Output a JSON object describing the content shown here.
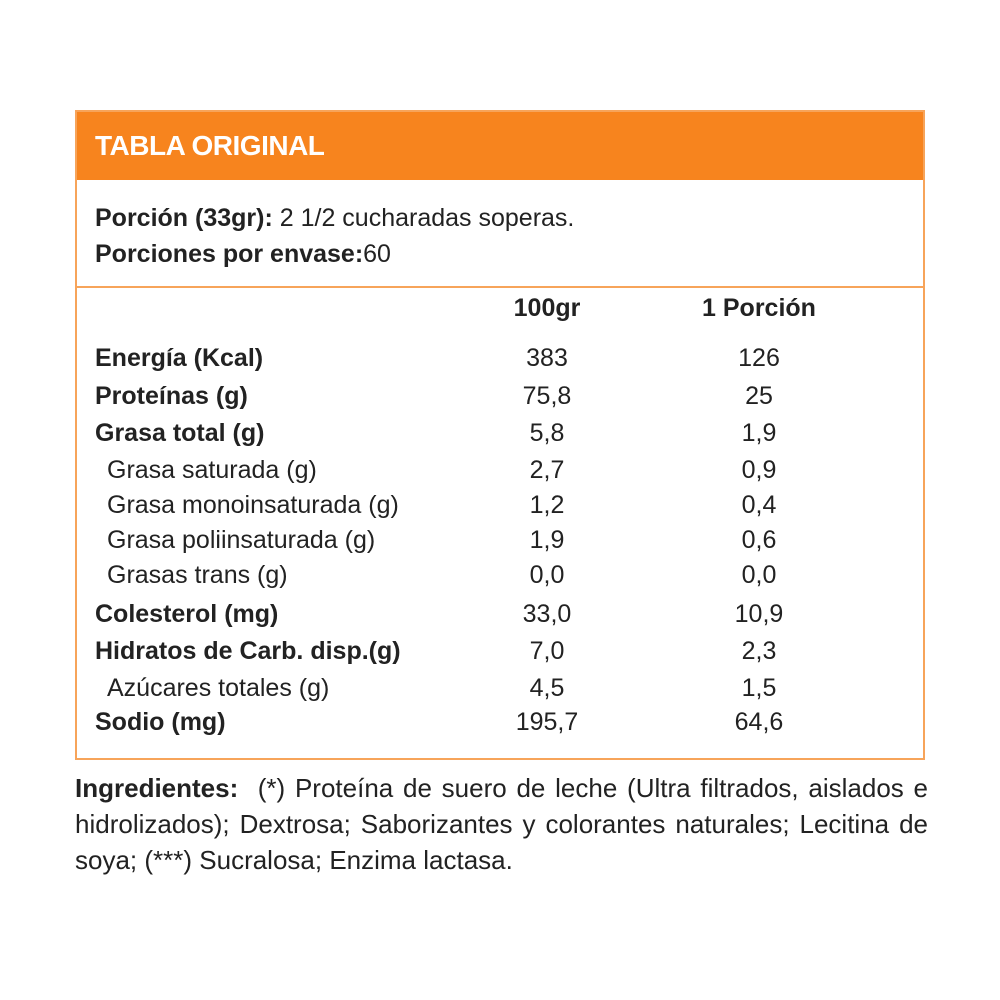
{
  "header": {
    "title": "TABLA ORIGINAL",
    "color": "#f7841e"
  },
  "serving": {
    "label": "Porción (33gr):",
    "value": "2 1/2 cucharadas soperas."
  },
  "servings_per_container": {
    "label": "Porciones por envase:",
    "value": "60"
  },
  "columns": [
    "100gr",
    "1 Porción"
  ],
  "rows": [
    {
      "label": "Energía (Kcal)",
      "per100": "383",
      "portion": "126",
      "bold": true
    },
    {
      "label": "Proteínas (g)",
      "per100": "75,8",
      "portion": "25",
      "bold": true
    },
    {
      "label": "Grasa total (g)",
      "per100": "5,8",
      "portion": "1,9",
      "bold": true
    },
    {
      "label": "Grasa saturada (g)",
      "per100": "2,7",
      "portion": "0,9",
      "bold": false
    },
    {
      "label": "Grasa monoinsaturada (g)",
      "per100": "1,2",
      "portion": "0,4",
      "bold": false
    },
    {
      "label": "Grasa poliinsaturada (g)",
      "per100": "1,9",
      "portion": "0,6",
      "bold": false
    },
    {
      "label": "Grasas trans (g)",
      "per100": "0,0",
      "portion": "0,0",
      "bold": false
    },
    {
      "label": "Colesterol (mg)",
      "per100": "33,0",
      "portion": "10,9",
      "bold": true
    },
    {
      "label": "Hidratos de Carb. disp.(g)",
      "per100": "7,0",
      "portion": "2,3",
      "bold": true
    },
    {
      "label": "Azúcares totales (g)",
      "per100": "4,5",
      "portion": "1,5",
      "bold": false
    },
    {
      "label": "Sodio (mg)",
      "per100": "195,7",
      "portion": "64,6",
      "bold": true
    }
  ],
  "ingredients": {
    "label": "Ingredientes:",
    "text": "(*) Proteína de suero de leche (Ultra filtrados, aislados e hidrolizados); Dextrosa; Saborizantes y colorantes naturales; Lecitina de soya; (***) Sucralosa; Enzima lactasa."
  }
}
